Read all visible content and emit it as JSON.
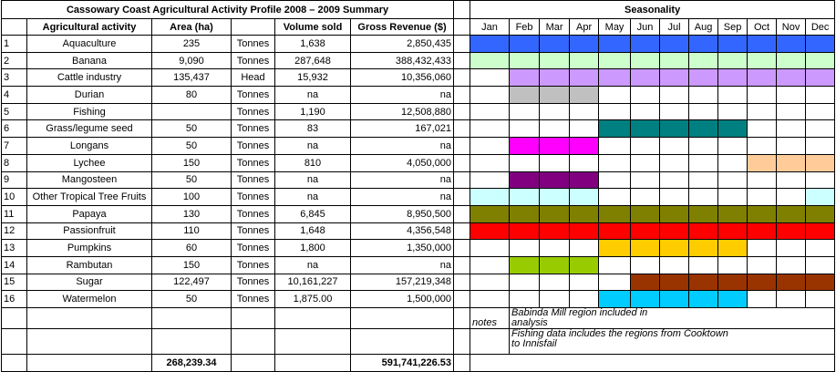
{
  "title": "Cassowary Coast Agricultural Activity Profile 2008 – 2009 Summary",
  "seasonality_title": "Seasonality",
  "headers": {
    "activity": "Agricultural activity",
    "area": "Area (ha)",
    "volume": "Volume sold",
    "revenue": "Gross Revenue ($)"
  },
  "months": [
    "Jan",
    "Feb",
    "Mar",
    "Apr",
    "May",
    "Jun",
    "Jul",
    "Aug",
    "Sep",
    "Oct",
    "Nov",
    "Dec"
  ],
  "rows": [
    {
      "no": "1",
      "activity": "Aquaculture",
      "area": "235",
      "unit": "Tonnes",
      "volume": "1,638",
      "revenue": "2,850,435",
      "color": "#3366ff",
      "season": [
        "Jan",
        "Feb",
        "Mar",
        "Apr",
        "May",
        "Jun",
        "Jul",
        "Aug",
        "Sep",
        "Oct",
        "Nov",
        "Dec"
      ]
    },
    {
      "no": "2",
      "activity": "Banana",
      "area": "9,090",
      "unit": "Tonnes",
      "volume": "287,648",
      "revenue": "388,432,433",
      "color": "#ccffcc",
      "season": [
        "Jan",
        "Feb",
        "Mar",
        "Apr",
        "May",
        "Jun",
        "Jul",
        "Aug",
        "Sep",
        "Oct",
        "Nov",
        "Dec"
      ]
    },
    {
      "no": "3",
      "activity": "Cattle industry",
      "area": "135,437",
      "unit": "Head",
      "volume": "15,932",
      "revenue": "10,356,060",
      "color": "#cc99ff",
      "season": [
        "Feb",
        "Mar",
        "Apr",
        "May",
        "Jun",
        "Jul",
        "Aug",
        "Sep",
        "Oct",
        "Nov",
        "Dec"
      ]
    },
    {
      "no": "4",
      "activity": "Durian",
      "area": "80",
      "unit": "Tonnes",
      "volume": "na",
      "revenue": "na",
      "color": "#c0c0c0",
      "season": [
        "Feb",
        "Mar",
        "Apr"
      ]
    },
    {
      "no": "5",
      "activity": "Fishing",
      "area": null,
      "unit": "Tonnes",
      "volume": "1,190",
      "revenue": "12,508,880",
      "color": null,
      "season": []
    },
    {
      "no": "6",
      "activity": "Grass/legume seed",
      "area": "50",
      "unit": "Tonnes",
      "volume": "83",
      "revenue": "167,021",
      "color": "#008080",
      "season": [
        "May",
        "Jun",
        "Jul",
        "Aug",
        "Sep"
      ]
    },
    {
      "no": "7",
      "activity": "Longans",
      "area": "50",
      "unit": "Tonnes",
      "volume": "na",
      "revenue": "na",
      "color": "#ff00ff",
      "season": [
        "Feb",
        "Mar",
        "Apr"
      ]
    },
    {
      "no": "8",
      "activity": "Lychee",
      "area": "150",
      "unit": "Tonnes",
      "volume": "810",
      "revenue": "4,050,000",
      "color": "#ffcc99",
      "season": [
        "Oct",
        "Nov",
        "Dec"
      ]
    },
    {
      "no": "9",
      "activity": "Mangosteen",
      "area": "50",
      "unit": "Tonnes",
      "volume": "na",
      "revenue": "na",
      "color": "#800080",
      "season": [
        "Feb",
        "Mar",
        "Apr"
      ]
    },
    {
      "no": "10",
      "activity": "Other Tropical Tree Fruits",
      "area": "100",
      "unit": "Tonnes",
      "volume": "na",
      "revenue": "na",
      "color": "#ccffff",
      "season": [
        "Jan",
        "Feb",
        "Mar",
        "Apr",
        "Dec"
      ]
    },
    {
      "no": "11",
      "activity": "Papaya",
      "area": "130",
      "unit": "Tonnes",
      "volume": "6,845",
      "revenue": "8,950,500",
      "color": "#808000",
      "season": [
        "Jan",
        "Feb",
        "Mar",
        "Apr",
        "May",
        "Jun",
        "Jul",
        "Aug",
        "Sep",
        "Oct",
        "Nov",
        "Dec"
      ]
    },
    {
      "no": "12",
      "activity": "Passionfruit",
      "area": "110",
      "unit": "Tonnes",
      "volume": "1,648",
      "revenue": "4,356,548",
      "color": "#ff0000",
      "season": [
        "Jan",
        "Feb",
        "Mar",
        "Apr",
        "May",
        "Jun",
        "Jul",
        "Aug",
        "Sep",
        "Oct",
        "Nov",
        "Dec"
      ]
    },
    {
      "no": "13",
      "activity": "Pumpkins",
      "area": "60",
      "unit": "Tonnes",
      "volume": "1,800",
      "revenue": "1,350,000",
      "color": "#ffcc00",
      "season": [
        "May",
        "Jun",
        "Jul",
        "Aug",
        "Sep"
      ]
    },
    {
      "no": "14",
      "activity": "Rambutan",
      "area": "150",
      "unit": "Tonnes",
      "volume": "na",
      "revenue": "na",
      "color": "#99cc00",
      "season": [
        "Feb",
        "Mar",
        "Apr"
      ]
    },
    {
      "no": "15",
      "activity": "Sugar",
      "area": "122,497",
      "unit": "Tonnes",
      "volume": "10,161,227",
      "revenue": "157,219,348",
      "color": "#993300",
      "season": [
        "Jun",
        "Jul",
        "Aug",
        "Sep",
        "Oct",
        "Nov",
        "Dec"
      ]
    },
    {
      "no": "16",
      "activity": "Watermelon",
      "area": "50",
      "unit": "Tonnes",
      "volume": "1,875.00",
      "revenue": "1,500,000",
      "color": "#00ccff",
      "season": [
        "May",
        "Jun",
        "Jul",
        "Aug",
        "Sep"
      ]
    }
  ],
  "notes_label": "notes",
  "notes": [
    "Babinda Mill region included in analysis",
    "Fishing data includes the regions from Cooktown to Innisfail"
  ],
  "totals": {
    "area": "268,239.34",
    "revenue": "591,741,226.53"
  }
}
